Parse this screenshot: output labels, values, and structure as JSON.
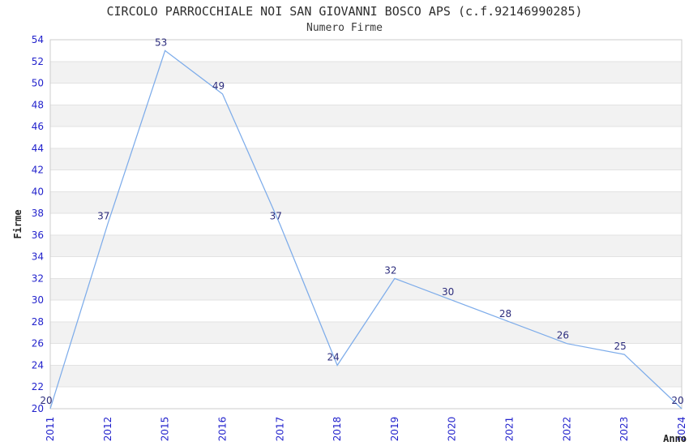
{
  "page": {
    "background": "#ffffff"
  },
  "chart_data": {
    "type": "line",
    "title": "CIRCOLO PARROCCHIALE NOI SAN GIOVANNI BOSCO APS (c.f.92146990285)",
    "subtitle": "Numero Firme",
    "xlabel": "Anno",
    "ylabel": "Firme",
    "categories": [
      "2011",
      "2012",
      "2015",
      "2016",
      "2017",
      "2018",
      "2019",
      "2020",
      "2021",
      "2022",
      "2023",
      "2024"
    ],
    "series": [
      {
        "name": "Numero Firme",
        "values": [
          20,
          37,
          53,
          49,
          37,
          24,
          32,
          30,
          28,
          26,
          25,
          20
        ]
      }
    ],
    "data_labels": [
      20,
      37,
      53,
      49,
      37,
      24,
      32,
      30,
      28,
      26,
      25,
      20
    ],
    "ylim": [
      20,
      54
    ],
    "ytick_step": 2,
    "ytick_labels": [
      "20",
      "22",
      "24",
      "26",
      "28",
      "30",
      "32",
      "34",
      "36",
      "38",
      "40",
      "42",
      "44",
      "46",
      "48",
      "50",
      "52",
      "54"
    ],
    "xtick_rotation": -90,
    "grid": "horizontal-alternating-bands",
    "legend": "none",
    "markers": "none",
    "colors": {
      "line": "#7dacea",
      "tick_label": "#2222cc",
      "data_label": "#2d2d7d",
      "band_fill": "#f2f2f2",
      "band_fill_alt": "#ffffff",
      "grid_line": "#e2e2e2",
      "plot_border": "#cccccc",
      "title_text": "#2e2e2e",
      "axis_title_text": "#222222",
      "background": "#ffffff"
    }
  }
}
